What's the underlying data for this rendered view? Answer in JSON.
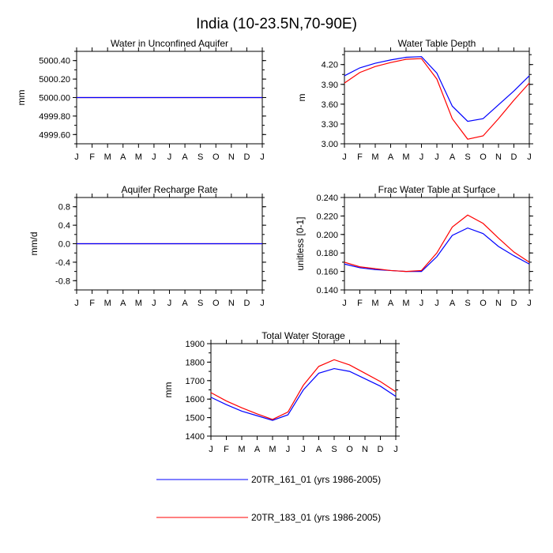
{
  "page_title": "India (10-23.5N,70-90E)",
  "colors": {
    "run1": "#0000ff",
    "run2": "#ff0000",
    "axis": "#000000"
  },
  "legend": [
    {
      "label": "20TR_161_01 (yrs 1986-2005)",
      "color": "#0000ff"
    },
    {
      "label": "20TR_183_01 (yrs 1986-2005)",
      "color": "#ff0000"
    }
  ],
  "chart_data": [
    {
      "type": "line",
      "title": "Water in Unconfined Aquifer",
      "xlabel": "",
      "ylabel": "mm",
      "categories": [
        "J",
        "F",
        "M",
        "A",
        "M",
        "J",
        "J",
        "A",
        "S",
        "O",
        "N",
        "D",
        "J"
      ],
      "ylim": [
        4999.5,
        5000.5
      ],
      "yticks": [
        4999.6,
        4999.8,
        5000.0,
        5000.2,
        5000.4
      ],
      "ytick_labels": [
        "4999.60",
        "4999.80",
        "5000.00",
        "5000.20",
        "5000.40"
      ],
      "series": [
        {
          "name": "20TR_161_01 (yrs 1986-2005)",
          "values": [
            5000,
            5000,
            5000,
            5000,
            5000,
            5000,
            5000,
            5000,
            5000,
            5000,
            5000,
            5000,
            5000
          ]
        },
        {
          "name": "20TR_183_01 (yrs 1986-2005)",
          "values": [
            5000,
            5000,
            5000,
            5000,
            5000,
            5000,
            5000,
            5000,
            5000,
            5000,
            5000,
            5000,
            5000
          ]
        }
      ]
    },
    {
      "type": "line",
      "title": "Water Table Depth",
      "xlabel": "",
      "ylabel": "m",
      "categories": [
        "J",
        "F",
        "M",
        "A",
        "M",
        "J",
        "J",
        "A",
        "S",
        "O",
        "N",
        "D",
        "J"
      ],
      "ylim": [
        3.0,
        4.4
      ],
      "yticks": [
        3.0,
        3.3,
        3.6,
        3.9,
        4.2
      ],
      "ytick_labels": [
        "3.00",
        "3.30",
        "3.60",
        "3.90",
        "4.20"
      ],
      "series": [
        {
          "name": "20TR_161_01 (yrs 1986-2005)",
          "values": [
            4.03,
            4.15,
            4.22,
            4.27,
            4.31,
            4.32,
            4.07,
            3.57,
            3.34,
            3.38,
            3.59,
            3.8,
            4.03
          ]
        },
        {
          "name": "20TR_183_01 (yrs 1986-2005)",
          "values": [
            3.92,
            4.08,
            4.17,
            4.23,
            4.28,
            4.29,
            3.98,
            3.38,
            3.07,
            3.12,
            3.38,
            3.66,
            3.92
          ]
        }
      ]
    },
    {
      "type": "line",
      "title": "Aquifer Recharge Rate",
      "xlabel": "",
      "ylabel": "mm/d",
      "categories": [
        "J",
        "F",
        "M",
        "A",
        "M",
        "J",
        "J",
        "A",
        "S",
        "O",
        "N",
        "D",
        "J"
      ],
      "ylim": [
        -1.0,
        1.0
      ],
      "yticks": [
        -0.8,
        -0.4,
        0.0,
        0.4,
        0.8
      ],
      "ytick_labels": [
        "-0.8",
        "-0.4",
        "0.0",
        "0.4",
        "0.8"
      ],
      "series": [
        {
          "name": "20TR_161_01 (yrs 1986-2005)",
          "values": [
            0,
            0,
            0,
            0,
            0,
            0,
            0,
            0,
            0,
            0,
            0,
            0,
            0
          ]
        },
        {
          "name": "20TR_183_01 (yrs 1986-2005)",
          "values": [
            0,
            0,
            0,
            0,
            0,
            0,
            0,
            0,
            0,
            0,
            0,
            0,
            0
          ]
        }
      ]
    },
    {
      "type": "line",
      "title": "Frac Water Table at Surface",
      "xlabel": "",
      "ylabel": "unitless [0-1]",
      "categories": [
        "J",
        "F",
        "M",
        "A",
        "M",
        "J",
        "J",
        "A",
        "S",
        "O",
        "N",
        "D",
        "J"
      ],
      "ylim": [
        0.14,
        0.24
      ],
      "yticks": [
        0.14,
        0.16,
        0.18,
        0.2,
        0.22,
        0.24
      ],
      "ytick_labels": [
        "0.140",
        "0.160",
        "0.180",
        "0.200",
        "0.220",
        "0.240"
      ],
      "series": [
        {
          "name": "20TR_161_01 (yrs 1986-2005)",
          "values": [
            0.168,
            0.164,
            0.162,
            0.161,
            0.16,
            0.16,
            0.176,
            0.199,
            0.207,
            0.201,
            0.187,
            0.177,
            0.168
          ]
        },
        {
          "name": "20TR_183_01 (yrs 1986-2005)",
          "values": [
            0.17,
            0.165,
            0.163,
            0.161,
            0.16,
            0.161,
            0.18,
            0.208,
            0.221,
            0.212,
            0.196,
            0.181,
            0.17
          ]
        }
      ]
    },
    {
      "type": "line",
      "title": "Total Water Storage",
      "xlabel": "",
      "ylabel": "mm",
      "categories": [
        "J",
        "F",
        "M",
        "A",
        "M",
        "J",
        "J",
        "A",
        "S",
        "O",
        "N",
        "D",
        "J"
      ],
      "ylim": [
        1400,
        1900
      ],
      "yticks": [
        1400,
        1500,
        1600,
        1700,
        1800,
        1900
      ],
      "ytick_labels": [
        "1400",
        "1500",
        "1600",
        "1700",
        "1800",
        "1900"
      ],
      "series": [
        {
          "name": "20TR_161_01 (yrs 1986-2005)",
          "values": [
            1610,
            1570,
            1535,
            1510,
            1485,
            1515,
            1650,
            1740,
            1765,
            1750,
            1710,
            1670,
            1615
          ]
        },
        {
          "name": "20TR_183_01 (yrs 1986-2005)",
          "values": [
            1635,
            1590,
            1553,
            1520,
            1490,
            1530,
            1675,
            1777,
            1813,
            1785,
            1740,
            1695,
            1640
          ]
        }
      ]
    }
  ]
}
